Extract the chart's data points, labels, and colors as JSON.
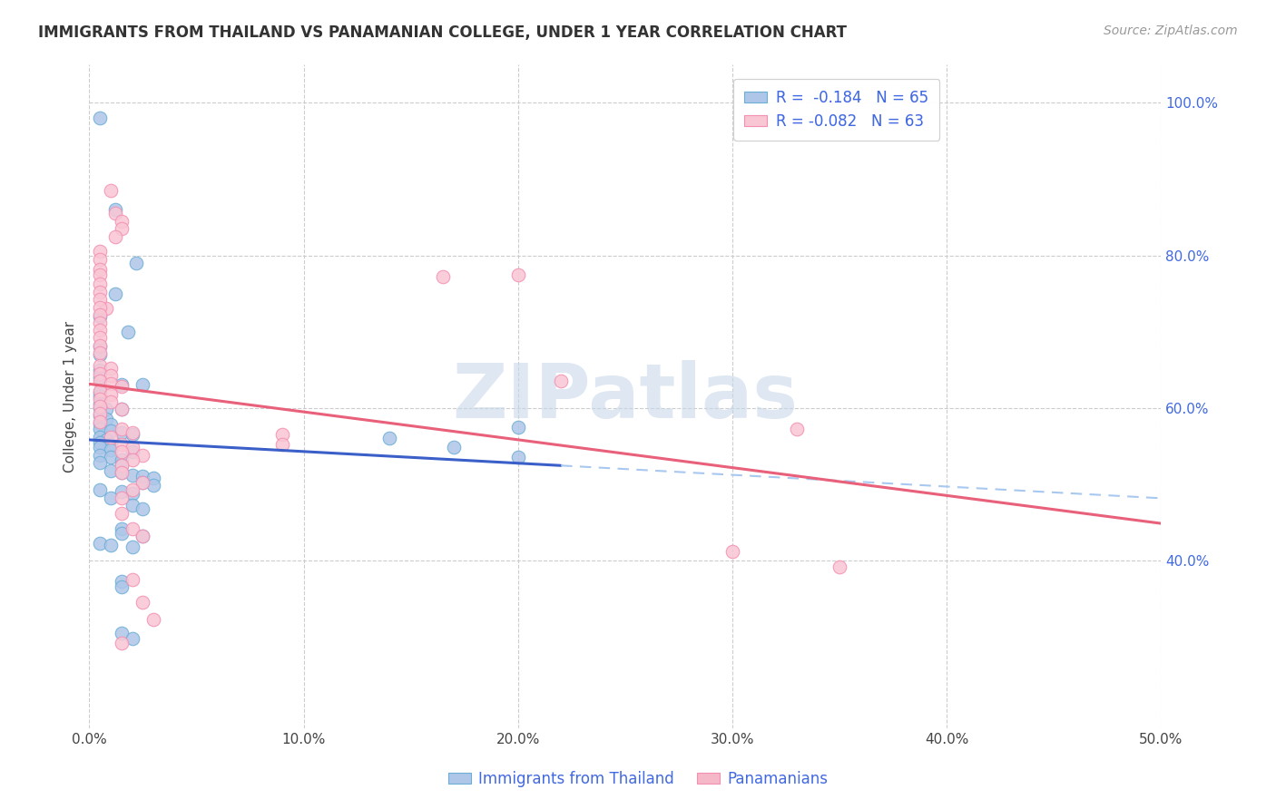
{
  "title": "IMMIGRANTS FROM THAILAND VS PANAMANIAN COLLEGE, UNDER 1 YEAR CORRELATION CHART",
  "source": "Source: ZipAtlas.com",
  "ylabel": "College, Under 1 year",
  "xlim": [
    0.0,
    0.5
  ],
  "ylim": [
    0.18,
    1.05
  ],
  "xtick_labels": [
    "0.0%",
    "10.0%",
    "20.0%",
    "30.0%",
    "40.0%",
    "50.0%"
  ],
  "xtick_values": [
    0.0,
    0.1,
    0.2,
    0.3,
    0.4,
    0.5
  ],
  "right_ytick_labels": [
    "40.0%",
    "60.0%",
    "80.0%",
    "100.0%"
  ],
  "right_ytick_values": [
    0.4,
    0.6,
    0.8,
    1.0
  ],
  "legend_r_entries": [
    {
      "label": "R =  -0.184   N = 65",
      "facecolor": "#aec6e8",
      "edgecolor": "#6baed6"
    },
    {
      "label": "R = -0.082   N = 63",
      "facecolor": "#f4b8c8",
      "edgecolor": "#f48fb1"
    }
  ],
  "watermark": "ZIPatlas",
  "blue_scatter": [
    [
      0.005,
      0.98
    ],
    [
      0.012,
      0.86
    ],
    [
      0.022,
      0.79
    ],
    [
      0.012,
      0.75
    ],
    [
      0.005,
      0.72
    ],
    [
      0.018,
      0.7
    ],
    [
      0.005,
      0.68
    ],
    [
      0.005,
      0.67
    ],
    [
      0.005,
      0.65
    ],
    [
      0.005,
      0.64
    ],
    [
      0.015,
      0.63
    ],
    [
      0.025,
      0.63
    ],
    [
      0.005,
      0.62
    ],
    [
      0.005,
      0.615
    ],
    [
      0.005,
      0.605
    ],
    [
      0.005,
      0.6
    ],
    [
      0.008,
      0.598
    ],
    [
      0.015,
      0.598
    ],
    [
      0.005,
      0.59
    ],
    [
      0.008,
      0.585
    ],
    [
      0.005,
      0.58
    ],
    [
      0.01,
      0.578
    ],
    [
      0.005,
      0.572
    ],
    [
      0.01,
      0.57
    ],
    [
      0.015,
      0.568
    ],
    [
      0.02,
      0.565
    ],
    [
      0.005,
      0.562
    ],
    [
      0.008,
      0.558
    ],
    [
      0.005,
      0.555
    ],
    [
      0.01,
      0.552
    ],
    [
      0.005,
      0.548
    ],
    [
      0.01,
      0.545
    ],
    [
      0.02,
      0.542
    ],
    [
      0.005,
      0.538
    ],
    [
      0.01,
      0.535
    ],
    [
      0.015,
      0.532
    ],
    [
      0.005,
      0.528
    ],
    [
      0.015,
      0.525
    ],
    [
      0.01,
      0.518
    ],
    [
      0.015,
      0.515
    ],
    [
      0.02,
      0.512
    ],
    [
      0.025,
      0.51
    ],
    [
      0.03,
      0.508
    ],
    [
      0.025,
      0.502
    ],
    [
      0.03,
      0.498
    ],
    [
      0.005,
      0.492
    ],
    [
      0.015,
      0.49
    ],
    [
      0.02,
      0.488
    ],
    [
      0.01,
      0.482
    ],
    [
      0.02,
      0.472
    ],
    [
      0.025,
      0.468
    ],
    [
      0.015,
      0.442
    ],
    [
      0.015,
      0.435
    ],
    [
      0.025,
      0.432
    ],
    [
      0.005,
      0.422
    ],
    [
      0.01,
      0.42
    ],
    [
      0.02,
      0.418
    ],
    [
      0.015,
      0.372
    ],
    [
      0.015,
      0.365
    ],
    [
      0.015,
      0.305
    ],
    [
      0.02,
      0.298
    ],
    [
      0.2,
      0.575
    ],
    [
      0.14,
      0.56
    ],
    [
      0.17,
      0.548
    ],
    [
      0.2,
      0.535
    ]
  ],
  "pink_scatter": [
    [
      0.008,
      0.73
    ],
    [
      0.01,
      0.885
    ],
    [
      0.012,
      0.855
    ],
    [
      0.015,
      0.845
    ],
    [
      0.015,
      0.835
    ],
    [
      0.012,
      0.825
    ],
    [
      0.005,
      0.805
    ],
    [
      0.005,
      0.795
    ],
    [
      0.005,
      0.782
    ],
    [
      0.005,
      0.775
    ],
    [
      0.005,
      0.762
    ],
    [
      0.005,
      0.752
    ],
    [
      0.005,
      0.742
    ],
    [
      0.005,
      0.732
    ],
    [
      0.005,
      0.722
    ],
    [
      0.005,
      0.712
    ],
    [
      0.005,
      0.702
    ],
    [
      0.005,
      0.692
    ],
    [
      0.005,
      0.682
    ],
    [
      0.005,
      0.672
    ],
    [
      0.005,
      0.655
    ],
    [
      0.01,
      0.652
    ],
    [
      0.005,
      0.645
    ],
    [
      0.01,
      0.642
    ],
    [
      0.005,
      0.635
    ],
    [
      0.01,
      0.632
    ],
    [
      0.015,
      0.628
    ],
    [
      0.005,
      0.622
    ],
    [
      0.01,
      0.618
    ],
    [
      0.005,
      0.612
    ],
    [
      0.01,
      0.608
    ],
    [
      0.005,
      0.602
    ],
    [
      0.015,
      0.598
    ],
    [
      0.005,
      0.592
    ],
    [
      0.005,
      0.582
    ],
    [
      0.015,
      0.572
    ],
    [
      0.02,
      0.568
    ],
    [
      0.01,
      0.562
    ],
    [
      0.015,
      0.552
    ],
    [
      0.02,
      0.548
    ],
    [
      0.015,
      0.542
    ],
    [
      0.025,
      0.538
    ],
    [
      0.02,
      0.532
    ],
    [
      0.015,
      0.525
    ],
    [
      0.015,
      0.515
    ],
    [
      0.025,
      0.502
    ],
    [
      0.02,
      0.492
    ],
    [
      0.015,
      0.482
    ],
    [
      0.015,
      0.462
    ],
    [
      0.02,
      0.442
    ],
    [
      0.025,
      0.432
    ],
    [
      0.02,
      0.375
    ],
    [
      0.025,
      0.345
    ],
    [
      0.03,
      0.322
    ],
    [
      0.015,
      0.292
    ],
    [
      0.2,
      0.775
    ],
    [
      0.165,
      0.772
    ],
    [
      0.09,
      0.565
    ],
    [
      0.09,
      0.552
    ],
    [
      0.3,
      0.412
    ],
    [
      0.35,
      0.392
    ],
    [
      0.22,
      0.635
    ],
    [
      0.33,
      0.572
    ]
  ],
  "blue_color": "#6baed6",
  "blue_face": "#aec6e8",
  "pink_color": "#f48fb1",
  "pink_face": "#f9c6d4",
  "blue_line_color": "#3a5fc8",
  "pink_line_color": "#e8607a",
  "blue_dashed_color": "#a8c8f0",
  "title_fontsize": 12,
  "source_fontsize": 10,
  "watermark_color": "#c8d8ea",
  "watermark_fontsize": 60,
  "bottom_legend": [
    {
      "label": "Immigrants from Thailand",
      "facecolor": "#aec6e8",
      "edgecolor": "#6baed6"
    },
    {
      "label": "Panamanians",
      "facecolor": "#f4b8c8",
      "edgecolor": "#f48fb1"
    }
  ]
}
